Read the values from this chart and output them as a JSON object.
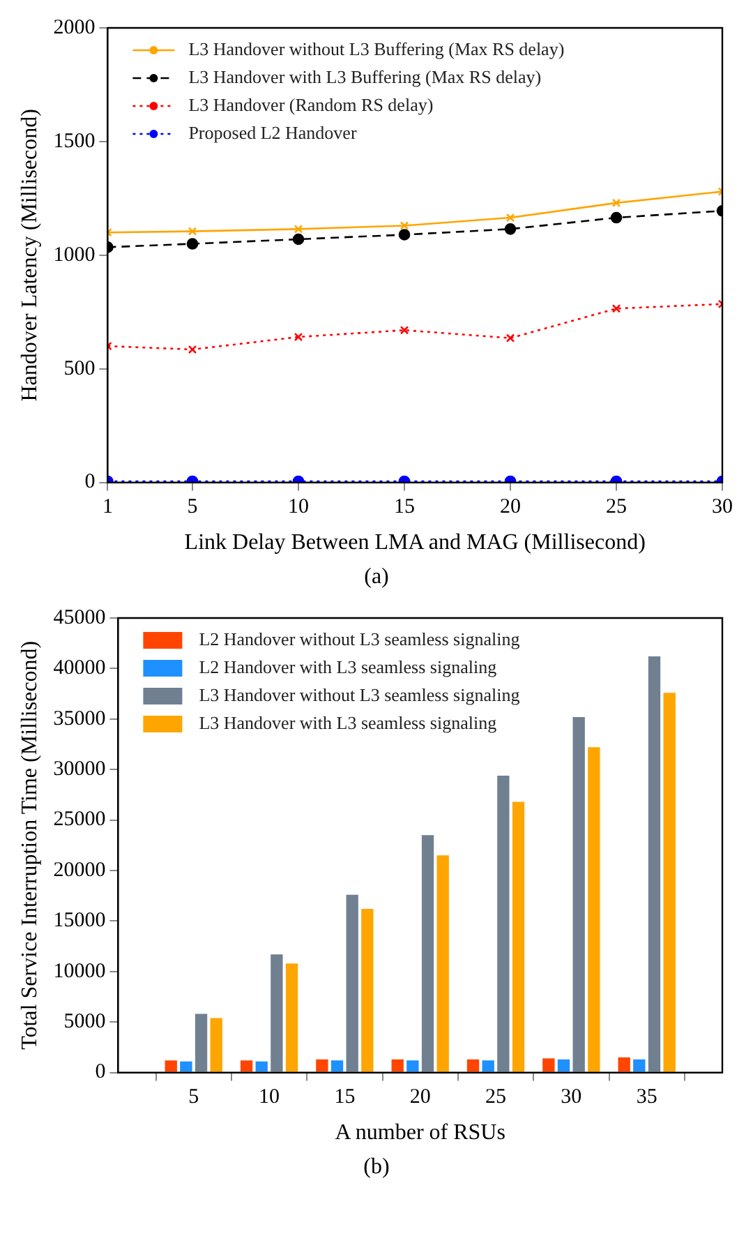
{
  "chart_data": [
    {
      "type": "line",
      "xlabel": "Link Delay Between LMA and MAG (Millisecond)",
      "ylabel": "Handover Latency (Millisecond)",
      "x": [
        1,
        5,
        10,
        15,
        20,
        25,
        30
      ],
      "xlim": [
        1,
        30
      ],
      "xticks": [
        1,
        5,
        10,
        15,
        20,
        25,
        30
      ],
      "ylim": [
        0,
        2000
      ],
      "yticks": [
        0,
        500,
        1000,
        1500,
        2000
      ],
      "grid": false,
      "legend": "top left",
      "annotations": [
        "(a)"
      ],
      "series": [
        {
          "name": "L3 Handover without L3 Buffering (Max RS delay)",
          "color": "#ffa500",
          "marker": "cross",
          "line_style": "solid",
          "values": [
            1100,
            1105,
            1115,
            1130,
            1165,
            1230,
            1280
          ]
        },
        {
          "name": "L3 Handover with L3 Buffering (Max RS delay)",
          "color": "#000000",
          "marker": "circle",
          "line_style": "dashed",
          "values": [
            1035,
            1050,
            1070,
            1090,
            1115,
            1165,
            1195
          ]
        },
        {
          "name": "L3 Handover (Random RS delay)",
          "color": "#ff0000",
          "marker": "cross",
          "line_style": "dotted",
          "values": [
            600,
            585,
            640,
            670,
            635,
            765,
            785
          ]
        },
        {
          "name": "Proposed L2 Handover",
          "color": "#0000ff",
          "marker": "circle",
          "line_style": "dotted",
          "values": [
            5,
            5,
            5,
            5,
            5,
            5,
            5
          ]
        }
      ]
    },
    {
      "type": "bar",
      "xlabel": "A number of RSUs",
      "ylabel": "Total Service Interruption Time (Millisecond)",
      "x": [
        5,
        10,
        15,
        20,
        25,
        30,
        35
      ],
      "xlim": [
        0,
        40
      ],
      "xticks": [
        5,
        10,
        15,
        20,
        25,
        30,
        35
      ],
      "ylim": [
        0,
        45000
      ],
      "yticks": [
        0,
        5000,
        10000,
        15000,
        20000,
        25000,
        30000,
        35000,
        40000,
        45000
      ],
      "grid": false,
      "legend": "top left",
      "annotations": [
        "(b)"
      ],
      "series": [
        {
          "name": "L2 Handover without L3 seamless signaling",
          "color": "#ff4500",
          "values": [
            1200,
            1200,
            1300,
            1300,
            1300,
            1400,
            1500
          ]
        },
        {
          "name": "L2 Handover with L3 seamless signaling",
          "color": "#1e90ff",
          "values": [
            1100,
            1100,
            1200,
            1200,
            1200,
            1300,
            1300
          ]
        },
        {
          "name": "L3 Handover without L3 seamless signaling",
          "color": "#708090",
          "values": [
            5800,
            11700,
            17600,
            23500,
            29400,
            35200,
            41200
          ]
        },
        {
          "name": "L3 Handover with L3 seamless signaling",
          "color": "#ffa500",
          "values": [
            5400,
            10800,
            16200,
            21500,
            26800,
            32200,
            37600
          ]
        }
      ]
    }
  ]
}
